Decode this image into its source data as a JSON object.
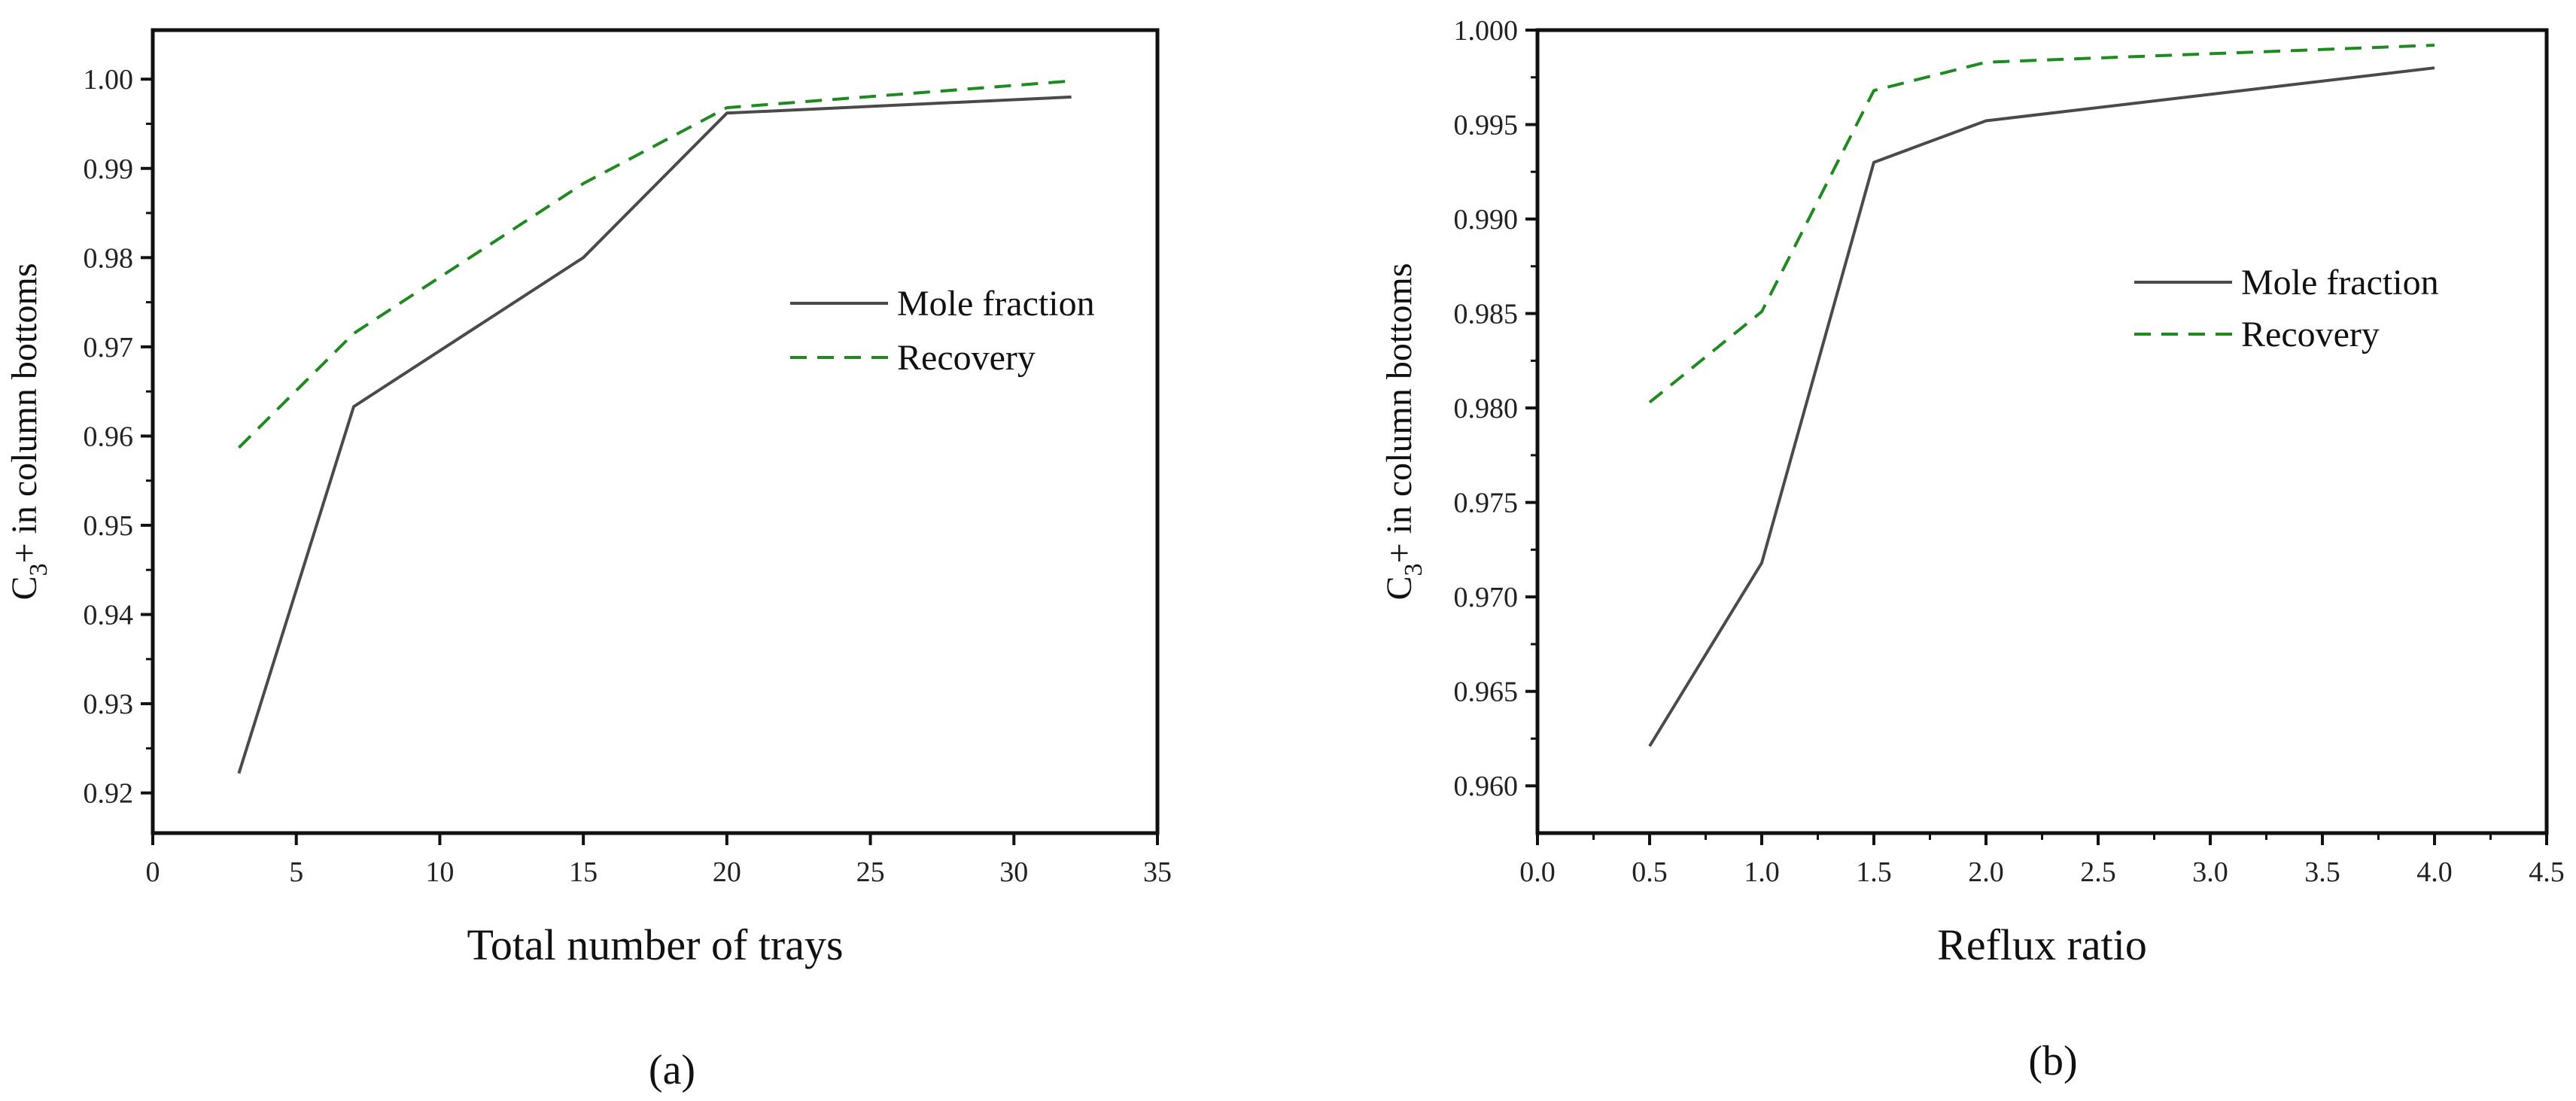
{
  "colors": {
    "mole_fraction": "#4a4a4a",
    "recovery": "#1f8a1f",
    "axis": "#111111"
  },
  "chart_data": [
    {
      "type": "line",
      "panel_label": "(a)",
      "xlabel": "Total number of trays",
      "ylabel_main": "C",
      "ylabel_sub": "3",
      "ylabel_rest": "+ in column bottoms",
      "xlim": [
        0,
        35
      ],
      "ylim": [
        0.9155,
        1.0055
      ],
      "xticks": [
        0,
        5,
        10,
        15,
        20,
        25,
        30,
        35
      ],
      "xtick_labels": [
        "0",
        "5",
        "10",
        "15",
        "20",
        "25",
        "30",
        "35"
      ],
      "yticks": [
        0.92,
        0.93,
        0.94,
        0.95,
        0.96,
        0.97,
        0.98,
        0.99,
        1.0
      ],
      "ytick_labels": [
        "0.92",
        "0.93",
        "0.94",
        "0.95",
        "0.96",
        "0.97",
        "0.98",
        "0.99",
        "1.00"
      ],
      "series": [
        {
          "name": "Mole fraction",
          "style": "solid",
          "x": [
            3,
            7,
            15,
            20,
            32
          ],
          "values": [
            0.9222,
            0.9633,
            0.98,
            0.9962,
            0.998
          ]
        },
        {
          "name": "Recovery",
          "style": "dashed",
          "x": [
            3,
            7,
            15,
            20,
            32
          ],
          "values": [
            0.9587,
            0.9715,
            0.9883,
            0.9968,
            0.9998
          ]
        }
      ],
      "legend": [
        "Mole fraction",
        "Recovery"
      ]
    },
    {
      "type": "line",
      "panel_label": "(b)",
      "xlabel": "Reflux ratio",
      "ylabel_main": "C",
      "ylabel_sub": "3",
      "ylabel_rest": "+ in column bottoms",
      "xlim": [
        0.0,
        4.5
      ],
      "ylim": [
        0.9575,
        1.0
      ],
      "xticks": [
        0.0,
        0.5,
        1.0,
        1.5,
        2.0,
        2.5,
        3.0,
        3.5,
        4.0,
        4.5
      ],
      "xtick_labels": [
        "0.0",
        "0.5",
        "1.0",
        "1.5",
        "2.0",
        "2.5",
        "3.0",
        "3.5",
        "4.0",
        "4.5"
      ],
      "yticks": [
        0.96,
        0.965,
        0.97,
        0.975,
        0.98,
        0.985,
        0.99,
        0.995,
        1.0
      ],
      "ytick_labels": [
        "0.960",
        "0.965",
        "0.970",
        "0.975",
        "0.980",
        "0.985",
        "0.990",
        "0.995",
        "1.000"
      ],
      "series": [
        {
          "name": "Mole fraction",
          "style": "solid",
          "x": [
            0.5,
            1.0,
            1.5,
            2.0,
            4.0
          ],
          "values": [
            0.9621,
            0.9718,
            0.993,
            0.9952,
            0.998
          ]
        },
        {
          "name": "Recovery",
          "style": "dashed",
          "x": [
            0.5,
            1.0,
            1.5,
            2.0,
            4.0
          ],
          "values": [
            0.9803,
            0.9851,
            0.9968,
            0.9983,
            0.9992
          ]
        }
      ],
      "legend": [
        "Mole fraction",
        "Recovery"
      ]
    }
  ]
}
